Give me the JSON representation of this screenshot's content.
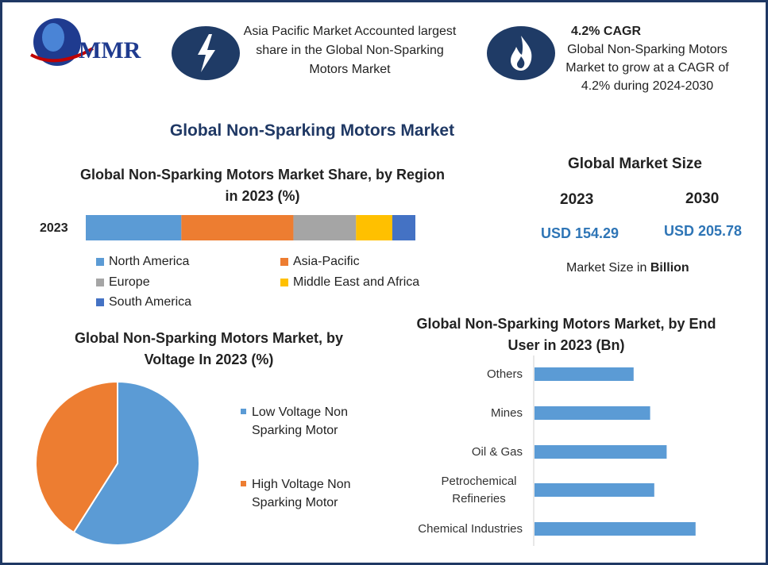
{
  "header": {
    "logo_text": "MMR",
    "asia_blurb": "Asia Pacific Market Accounted largest share in the Global Non-Sparking Motors Market",
    "cagr_heading": "4.2% CAGR",
    "cagr_blurb": "Global Non-Sparking Motors Market to grow at a CAGR of 4.2% during 2024-2030",
    "lightning_icon": "lightning-icon",
    "flame_icon": "flame-icon"
  },
  "main_title": "Global Non-Sparking Motors Market",
  "market_size": {
    "heading": "Global Market Size",
    "year1": "2023",
    "year2": "2030",
    "value1": "USD 154.29",
    "value2": "USD 205.78",
    "note_prefix": "Market Size in ",
    "note_bold": "Billion"
  },
  "colors": {
    "blue": "#5b9bd5",
    "orange": "#ed7d31",
    "gray": "#a5a5a5",
    "yellow": "#ffc000",
    "dark_blue": "#4472c4",
    "navy": "#1f3864"
  },
  "chart_data": [
    {
      "type": "bar",
      "orientation": "horizontal-stacked",
      "title": "Global Non-Sparking Motors Market Share, by Region in 2023 (%)",
      "categories": [
        "2023"
      ],
      "series": [
        {
          "name": "North America",
          "values": [
            29
          ]
        },
        {
          "name": "Asia-Pacific",
          "values": [
            34
          ]
        },
        {
          "name": "Europe",
          "values": [
            19
          ]
        },
        {
          "name": "Middle East and Africa",
          "values": [
            11
          ]
        },
        {
          "name": "South America",
          "values": [
            7
          ]
        }
      ],
      "legend": "bottom"
    },
    {
      "type": "pie",
      "title": "Global Non-Sparking Motors Market, by Voltage In 2023 (%)",
      "labels": [
        "Low Voltage Non Sparking Motor",
        "High Voltage Non Sparking Motor"
      ],
      "values": [
        59,
        41
      ],
      "legend": "right"
    },
    {
      "type": "bar",
      "orientation": "horizontal",
      "title": "Global Non-Sparking Motors Market, by End User in 2023 (Bn)",
      "categories": [
        "Others",
        "Mines",
        "Oil & Gas",
        "Petrochemical Refineries",
        "Chemical Industries"
      ],
      "values": [
        24,
        28,
        32,
        29,
        39
      ],
      "xlim": [
        0,
        50
      ]
    }
  ]
}
